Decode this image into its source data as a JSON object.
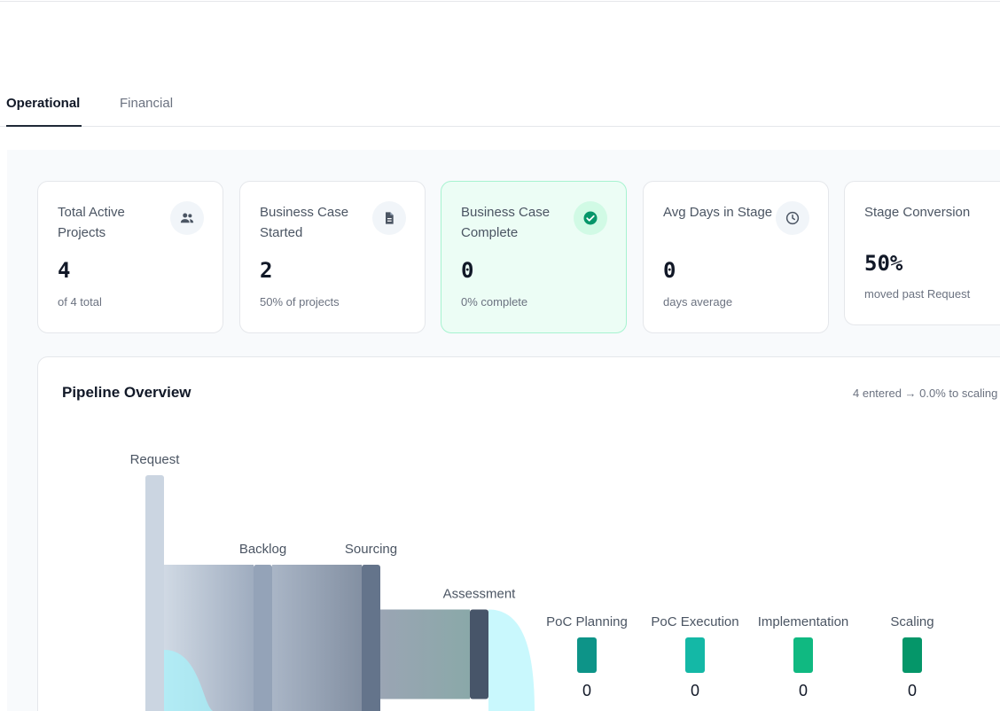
{
  "tabs": [
    {
      "label": "Operational",
      "active": true
    },
    {
      "label": "Financial",
      "active": false
    }
  ],
  "cards": [
    {
      "title": "Total Active Projects",
      "value": "4",
      "sub": "of 4 total",
      "icon": "users-icon"
    },
    {
      "title": "Business Case Started",
      "value": "2",
      "sub": "50% of projects",
      "icon": "document-icon"
    },
    {
      "title": "Business Case Complete",
      "value": "0",
      "sub": "0% complete",
      "icon": "check-circle-icon"
    },
    {
      "title": "Avg Days in Stage",
      "value": "0",
      "sub": "days average",
      "icon": "clock-icon"
    },
    {
      "title": "Stage Conversion",
      "value": "50%",
      "sub": "moved past Request",
      "icon": "arrows-exchange-icon"
    }
  ],
  "pipeline": {
    "title": "Pipeline Overview",
    "summary": "4 entered → 0.0% to scaling",
    "stages": [
      {
        "label": "Request",
        "count": 4,
        "color": "#cbd5e1"
      },
      {
        "label": "Backlog",
        "count": 2,
        "color": "#94a3b8"
      },
      {
        "label": "Sourcing",
        "count": 2,
        "color": "#64748b"
      },
      {
        "label": "Assessment",
        "count": 1,
        "color": "#475569"
      },
      {
        "label": "PoC Planning",
        "count": 0,
        "value_label": "0",
        "color": "#0d9488"
      },
      {
        "label": "PoC Execution",
        "count": 0,
        "value_label": "0",
        "color": "#14b8a6"
      },
      {
        "label": "Implementation",
        "count": 0,
        "value_label": "0",
        "color": "#10b981"
      },
      {
        "label": "Scaling",
        "count": 0,
        "value_label": "0",
        "color": "#059669"
      }
    ]
  },
  "colors": {
    "accent_success_bg": "#ecfdf5",
    "accent_success_icon": "#059669",
    "flow_exit": "#a5f3fc"
  }
}
